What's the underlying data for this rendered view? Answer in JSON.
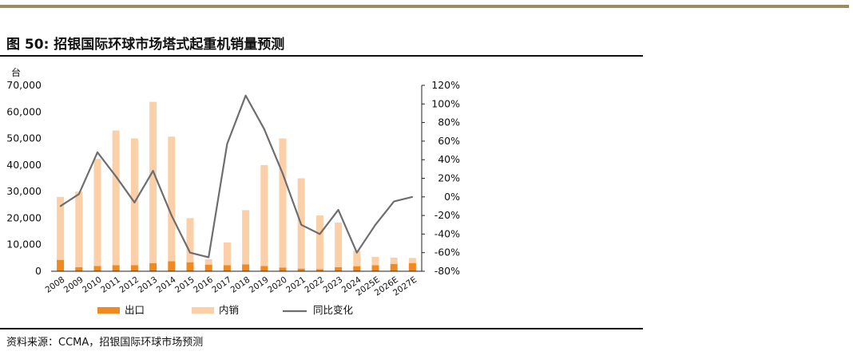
{
  "figure": {
    "title": "图 50: 招银国际环球市场塔式起重机销量预测",
    "source": "资料来源：CCMA，招银国际环球市场预测"
  },
  "chart_data": {
    "type": "bar",
    "stacked": true,
    "categories": [
      "2008",
      "2009",
      "2010",
      "2011",
      "2012",
      "2013",
      "2014",
      "2015",
      "2016",
      "2017",
      "2018",
      "2019",
      "2020",
      "2021",
      "2022",
      "2023",
      "2024",
      "2025E",
      "2026E",
      "2027E"
    ],
    "series": [
      {
        "name": "出口",
        "axis": "left",
        "color": "#f0891f",
        "values": [
          4300,
          1500,
          2000,
          2300,
          2300,
          3000,
          3800,
          3400,
          2500,
          2300,
          2600,
          2000,
          1400,
          1000,
          800,
          1500,
          1900,
          2300,
          2700,
          3000
        ]
      },
      {
        "name": "内销",
        "axis": "left",
        "color": "#fbcfa8",
        "values": [
          23700,
          28500,
          40300,
          50700,
          47700,
          60800,
          46900,
          16600,
          2000,
          8500,
          20400,
          38000,
          48600,
          34000,
          20200,
          16800,
          5800,
          3100,
          2400,
          2000
        ]
      },
      {
        "name": "同比变化",
        "type": "line",
        "axis": "right",
        "color": "#6e6e6e",
        "values": [
          -10,
          3,
          48,
          22,
          -6,
          28,
          -20,
          -60,
          -65,
          57,
          109,
          73,
          25,
          -30,
          -40,
          -14,
          -60,
          -30,
          -5,
          0
        ]
      }
    ],
    "y_unit_label": "台",
    "ylim_left": [
      0,
      70000
    ],
    "yticks_left": [
      "0",
      "10,000",
      "20,000",
      "30,000",
      "40,000",
      "50,000",
      "60,000",
      "70,000"
    ],
    "ylim_right": [
      -80,
      120
    ],
    "yticks_right": [
      "-80%",
      "-60%",
      "-40%",
      "-20%",
      "0%",
      "20%",
      "40%",
      "60%",
      "80%",
      "100%",
      "120%"
    ],
    "grid": false,
    "legend_position": "bottom"
  }
}
